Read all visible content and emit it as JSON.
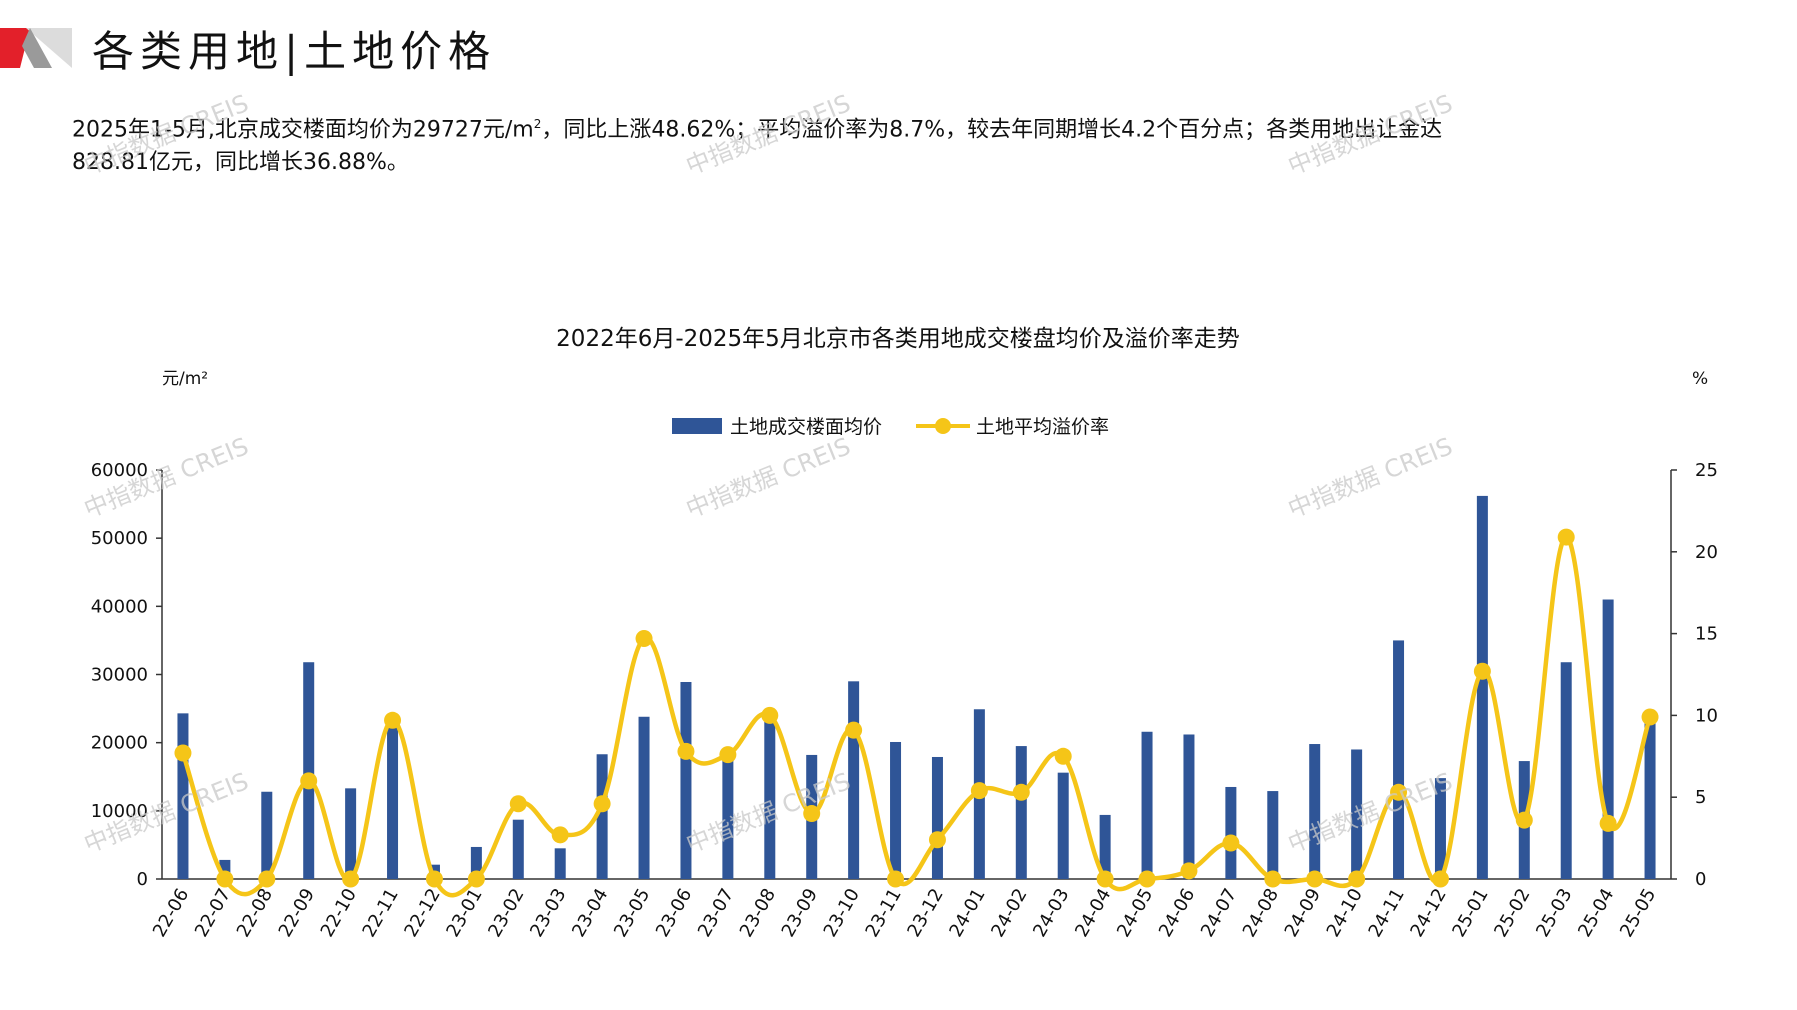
{
  "header": {
    "title": "各类用地|土地价格",
    "summary_line1": "2025年1-5月,北京成交楼面均价为29727元/m",
    "summary_sup": "2",
    "summary_line1_rest": "，同比上涨48.62%；平均溢价率为8.7%，较去年同期增长4.2个百分点；各类用地出让金达",
    "summary_line2": "828.81亿元，同比增长36.88%。"
  },
  "watermark": {
    "text": "中指数据 CREIS"
  },
  "colors": {
    "bar": "#2f5597",
    "line": "#f5c518",
    "brand_red": "#e3202a",
    "brand_gray": "#b8b8b8"
  },
  "chart_data": {
    "type": "bar+line",
    "title": "2022年6月-2025年5月北京市各类用地成交楼盘均价及溢价率走势",
    "left_unit": "元/m²",
    "right_unit": "%",
    "categories": [
      "22-06",
      "22-07",
      "22-08",
      "22-09",
      "22-10",
      "22-11",
      "22-12",
      "23-01",
      "23-02",
      "23-03",
      "23-04",
      "23-05",
      "23-06",
      "23-07",
      "23-08",
      "23-09",
      "23-10",
      "23-11",
      "23-12",
      "24-01",
      "24-02",
      "24-03",
      "24-04",
      "24-05",
      "24-06",
      "24-07",
      "24-08",
      "24-09",
      "24-10",
      "24-11",
      "24-12",
      "25-01",
      "25-02",
      "25-03",
      "25-04",
      "25-05"
    ],
    "series": [
      {
        "name": "土地成交楼面均价",
        "type": "bar",
        "axis": "left",
        "values": [
          24300,
          2800,
          12800,
          31800,
          13300,
          22500,
          2100,
          4700,
          8700,
          4500,
          18300,
          23800,
          28900,
          18000,
          23200,
          18200,
          29000,
          20100,
          17900,
          24900,
          19500,
          15600,
          9400,
          21600,
          21200,
          13500,
          12900,
          19800,
          19000,
          35000,
          14800,
          56200,
          17300,
          31800,
          41000,
          24000
        ]
      },
      {
        "name": "土地平均溢价率",
        "type": "line",
        "axis": "right",
        "values": [
          7.7,
          0,
          0,
          6.0,
          0,
          9.7,
          0,
          0,
          4.6,
          2.7,
          4.6,
          14.7,
          7.8,
          7.6,
          10.0,
          4.0,
          9.1,
          0,
          2.4,
          5.4,
          5.3,
          7.5,
          0,
          0,
          0.5,
          2.2,
          0,
          0,
          0,
          5.3,
          0,
          12.7,
          3.6,
          20.9,
          3.4,
          9.9
        ]
      }
    ],
    "left_ticks": [
      "0",
      "10000",
      "20000",
      "30000",
      "40000",
      "50000",
      "60000"
    ],
    "right_ticks": [
      "0",
      "5",
      "10",
      "15",
      "20",
      "25"
    ],
    "ylim_left": [
      0,
      60000
    ],
    "ylim_right": [
      0,
      25
    ],
    "legend_position": "top-center",
    "grid": false
  }
}
